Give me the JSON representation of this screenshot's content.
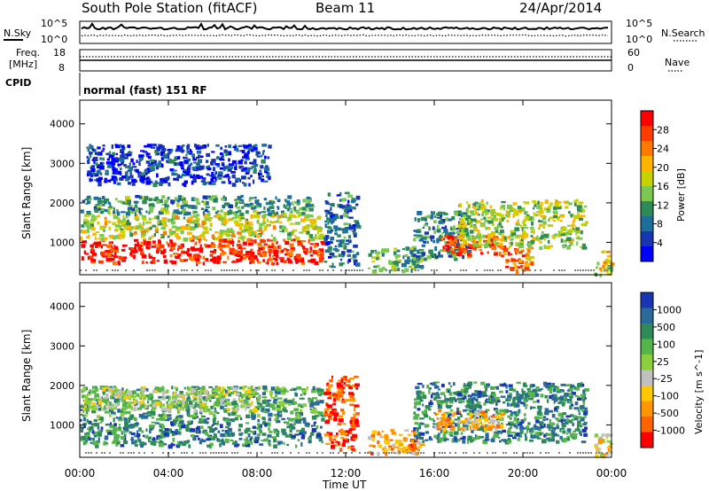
{
  "header": {
    "station": "South Pole Station (fitACF)",
    "beam": "Beam 11",
    "date": "24/Apr/2014"
  },
  "summary_panels": {
    "nsky_label": "N.Sky",
    "nsearch_label": "N.Search",
    "noise_ticks": [
      "10^5",
      "10^0"
    ],
    "freq_label_1": "Freq.",
    "freq_label_2": "[MHz]",
    "freq_ticks": [
      "18",
      "8"
    ],
    "nave_label": "Nave",
    "nave_ticks": [
      "60",
      "0"
    ],
    "cpid_label": "CPID",
    "cpid_value": "normal (fast) 151 RF"
  },
  "x_axis": {
    "label": "Time UT",
    "ticks": [
      "00:00",
      "04:00",
      "08:00",
      "12:00",
      "16:00",
      "20:00",
      "00:00"
    ]
  },
  "chart_data": [
    {
      "type": "heatmap",
      "panel": "power",
      "ylabel": "Slant Range [km]",
      "xlabel": "Time UT",
      "ylim": [
        180,
        4600
      ],
      "yticks": [
        1000,
        2000,
        3000,
        4000
      ],
      "xlim": [
        0,
        24
      ],
      "colorbar": {
        "label": "Power [dB]",
        "ticks": [
          "28",
          "24",
          "20",
          "16",
          "12",
          "8",
          "4"
        ],
        "colors": [
          "#ff0000",
          "#ff3c00",
          "#ff7800",
          "#ffb400",
          "#c8d200",
          "#7bc850",
          "#2e8b57",
          "#1d6e9a",
          "#1836b4",
          "#0000ff"
        ]
      },
      "regions": [
        {
          "t0": 0.0,
          "t1": 10.9,
          "r0": 500,
          "r1": 1100,
          "level": 0.92
        },
        {
          "t0": 0.0,
          "t1": 10.9,
          "r0": 1100,
          "r1": 1750,
          "level": 0.55
        },
        {
          "t0": 0.0,
          "t1": 10.5,
          "r0": 1750,
          "r1": 2200,
          "level": 0.35
        },
        {
          "t0": 0.3,
          "t1": 8.5,
          "r0": 2500,
          "r1": 3500,
          "level": 0.15
        },
        {
          "t0": 11.0,
          "t1": 12.5,
          "r0": 400,
          "r1": 2300,
          "level": 0.25
        },
        {
          "t0": 13.0,
          "t1": 15.4,
          "r0": 300,
          "r1": 900,
          "level": 0.4
        },
        {
          "t0": 15.0,
          "t1": 17.5,
          "r0": 600,
          "r1": 1800,
          "level": 0.3
        },
        {
          "t0": 16.3,
          "t1": 19.2,
          "r0": 700,
          "r1": 1200,
          "level": 0.85
        },
        {
          "t0": 17.0,
          "t1": 22.8,
          "r0": 900,
          "r1": 2100,
          "level": 0.5
        },
        {
          "t0": 19.0,
          "t1": 20.4,
          "r0": 300,
          "r1": 900,
          "level": 0.75
        },
        {
          "t0": 23.2,
          "t1": 24.0,
          "r0": 200,
          "r1": 800,
          "level": 0.55
        }
      ]
    },
    {
      "type": "heatmap",
      "panel": "velocity",
      "ylabel": "Slant Range [km]",
      "xlabel": "Time UT",
      "ylim": [
        180,
        4600
      ],
      "yticks": [
        1000,
        2000,
        3000,
        4000
      ],
      "xlim": [
        0,
        24
      ],
      "colorbar": {
        "label": "Velocity [m s^-1]",
        "ticks": [
          "1000",
          "500",
          "100",
          "25",
          "-25",
          "-100",
          "-500",
          "-1000"
        ],
        "colors": [
          "#1836b4",
          "#2a6a9a",
          "#2e8b57",
          "#55b44a",
          "#8ccf3c",
          "#c0c0c0",
          "#ffc800",
          "#ff9600",
          "#ff6400",
          "#ff0000"
        ]
      },
      "regions": [
        {
          "t0": 0.0,
          "t1": 10.9,
          "r0": 500,
          "r1": 1200,
          "level": 0.78
        },
        {
          "t0": 0.0,
          "t1": 10.9,
          "r0": 1200,
          "r1": 2000,
          "level": 0.7
        },
        {
          "t0": 0.0,
          "t1": 8.0,
          "r0": 1400,
          "r1": 2000,
          "level": 0.5
        },
        {
          "t0": 11.0,
          "t1": 12.5,
          "r0": 400,
          "r1": 2300,
          "level": 0.12
        },
        {
          "t0": 13.0,
          "t1": 15.4,
          "r0": 300,
          "r1": 900,
          "level": 0.25
        },
        {
          "t0": 15.0,
          "t1": 22.8,
          "r0": 600,
          "r1": 2100,
          "level": 0.78
        },
        {
          "t0": 16.0,
          "t1": 19.0,
          "r0": 900,
          "r1": 1400,
          "level": 0.3
        },
        {
          "t0": 23.2,
          "t1": 24.0,
          "r0": 200,
          "r1": 800,
          "level": 0.4
        }
      ]
    }
  ]
}
